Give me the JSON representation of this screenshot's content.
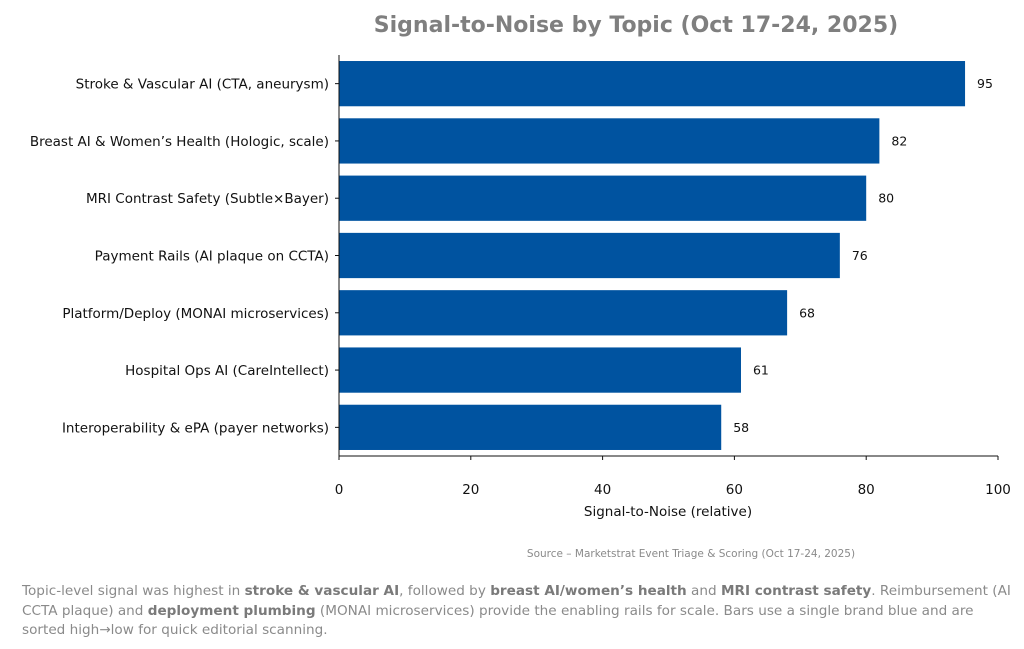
{
  "chart_data": {
    "type": "bar",
    "orientation": "horizontal",
    "title": "Signal-to-Noise by Topic (Oct 17-24, 2025)",
    "xlabel": "Signal-to-Noise (relative)",
    "ylabel": "",
    "xlim": [
      0,
      100
    ],
    "xticks": [
      0,
      20,
      40,
      60,
      80,
      100
    ],
    "sorted": "high-to-low",
    "bar_color": "#0053a0",
    "title_color": "#7f7f7f",
    "categories": [
      "Stroke & Vascular AI (CTA, aneurysm)",
      "Breast AI & Women’s Health (Hologic, scale)",
      "MRI Contrast Safety (Subtle×Bayer)",
      "Payment Rails (AI plaque on CCTA)",
      "Platform/Deploy (MONAI microservices)",
      "Hospital Ops AI (CareIntellect)",
      "Interoperability & ePA (payer networks)"
    ],
    "values": [
      95,
      82,
      80,
      76,
      68,
      61,
      58
    ],
    "grid": false,
    "legend": "none"
  },
  "source": "Source – Marketstrat Event Triage & Scoring (Oct 17-24, 2025)",
  "caption": {
    "segments": [
      {
        "text": "Topic-level signal was highest in ",
        "bold": false
      },
      {
        "text": "stroke & vascular AI",
        "bold": true
      },
      {
        "text": ", followed by ",
        "bold": false
      },
      {
        "text": "breast AI/women’s health",
        "bold": true
      },
      {
        "text": " and ",
        "bold": false
      },
      {
        "text": "MRI contrast safety",
        "bold": true
      },
      {
        "text": ". Reimbursement (AI CCTA plaque) and ",
        "bold": false
      },
      {
        "text": "deployment plumbing",
        "bold": true
      },
      {
        "text": " (MONAI microservices) provide the enabling rails for scale. Bars use a single brand blue and are sorted high→low for quick editorial scanning.",
        "bold": false
      }
    ]
  }
}
